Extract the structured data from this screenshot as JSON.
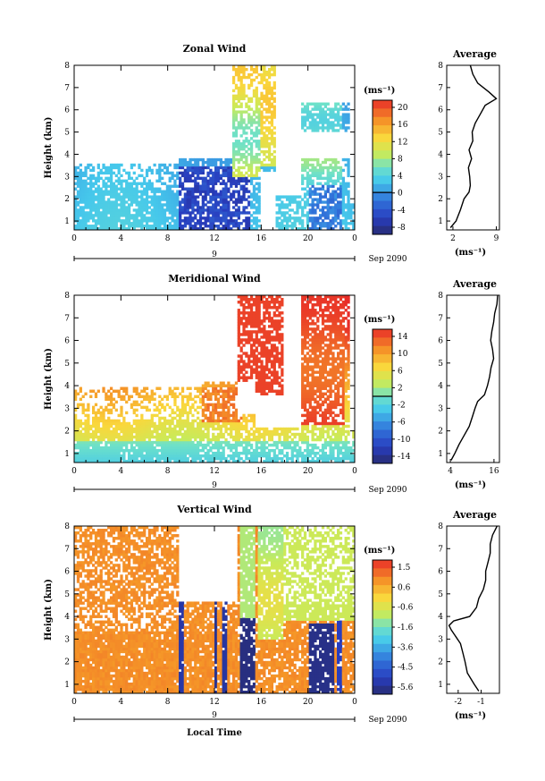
{
  "page": {
    "date_label": "Sep 2090",
    "day_label": "9",
    "xlabel": "Local Time"
  },
  "chart_data": [
    {
      "type": "heatmap",
      "title": "Zonal Wind",
      "ylabel": "Height (km)",
      "unit_label": "(ms⁻¹)",
      "xlim": [
        0,
        24
      ],
      "ylim": [
        0.6,
        8
      ],
      "xticks": [
        "0",
        "4",
        "8",
        "12",
        "16",
        "20",
        "0"
      ],
      "yticks": [
        "1",
        "2",
        "3",
        "4",
        "5",
        "6",
        "7",
        "8"
      ],
      "colorbar_ticks": [
        "20",
        "16",
        "12",
        "8",
        "4",
        "0",
        "-4",
        "-8"
      ],
      "clim": [
        -10,
        22
      ],
      "zero_line": 0,
      "color_low": "#2b2f7a",
      "color_mid": "#5de2f0",
      "color_high": "#e8312b",
      "average": {
        "title": "Average",
        "xticks": [
          "2",
          "9"
        ],
        "xlim": [
          1,
          9.5
        ],
        "xlabel": "(ms⁻¹)",
        "height": [
          0.7,
          1.0,
          1.5,
          2.0,
          2.3,
          2.6,
          3.0,
          3.4,
          3.8,
          4.2,
          4.6,
          5.0,
          5.4,
          5.8,
          6.2,
          6.5,
          6.8,
          7.2,
          7.6,
          8.0
        ],
        "value": [
          1.6,
          2.5,
          3.2,
          3.8,
          4.6,
          4.8,
          4.7,
          4.5,
          5.0,
          4.6,
          5.2,
          5.1,
          5.6,
          6.4,
          7.2,
          9.0,
          7.8,
          6.0,
          5.2,
          4.8
        ]
      }
    },
    {
      "type": "heatmap",
      "title": "Meridional Wind",
      "ylabel": "Height (km)",
      "unit_label": "(ms⁻¹)",
      "xlim": [
        0,
        24
      ],
      "ylim": [
        0.6,
        8
      ],
      "xticks": [
        "0",
        "4",
        "8",
        "12",
        "16",
        "20",
        "0"
      ],
      "yticks": [
        "1",
        "2",
        "3",
        "4",
        "5",
        "6",
        "7",
        "8"
      ],
      "colorbar_ticks": [
        "14",
        "10",
        "6",
        "2",
        "-2",
        "-6",
        "-10",
        "-14"
      ],
      "clim": [
        -16,
        16
      ],
      "zero_line": 0,
      "color_low": "#2b2f7a",
      "color_mid": "#5de2f0",
      "color_high": "#e8312b",
      "average": {
        "title": "Average",
        "xticks": [
          "4",
          "16"
        ],
        "xlim": [
          3,
          17.5
        ],
        "xlabel": "(ms⁻¹)",
        "height": [
          0.7,
          1.0,
          1.4,
          1.8,
          2.2,
          2.6,
          3.0,
          3.3,
          3.6,
          4.0,
          4.4,
          4.8,
          5.2,
          5.6,
          6.0,
          6.4,
          6.8,
          7.2,
          7.6,
          8.0
        ],
        "value": [
          4.2,
          5.2,
          6.4,
          7.8,
          9.2,
          10.0,
          10.8,
          11.5,
          13.4,
          14.2,
          14.8,
          15.2,
          15.9,
          15.6,
          15.1,
          15.4,
          15.9,
          16.2,
          16.8,
          17.0
        ]
      }
    },
    {
      "type": "heatmap",
      "title": "Vertical Wind",
      "ylabel": "Height (km)",
      "unit_label": "(ms⁻¹)",
      "xlim": [
        0,
        24
      ],
      "ylim": [
        0.6,
        8
      ],
      "xticks": [
        "0",
        "4",
        "8",
        "12",
        "16",
        "20",
        "0"
      ],
      "yticks": [
        "1",
        "2",
        "3",
        "4",
        "5",
        "6",
        "7",
        "8"
      ],
      "colorbar_ticks": [
        "1.5",
        "0.6",
        "-0.6",
        "-1.6",
        "-3.6",
        "-4.5",
        "-5.6"
      ],
      "clim": [
        -6.2,
        2.0
      ],
      "zero_line": null,
      "color_low": "#2b2f7a",
      "color_mid": "#5de2f0",
      "color_high": "#e8312b",
      "average": {
        "title": "Average",
        "xticks": [
          "-2",
          "-1"
        ],
        "xlim": [
          -2.5,
          -0.2
        ],
        "xlabel": "(ms⁻¹)",
        "height": [
          0.7,
          1.0,
          1.5,
          2.0,
          2.4,
          2.8,
          3.1,
          3.4,
          3.6,
          3.8,
          4.0,
          4.4,
          4.8,
          5.2,
          5.6,
          6.0,
          6.4,
          6.8,
          7.2,
          7.6,
          8.0
        ],
        "value": [
          -1.1,
          -1.3,
          -1.6,
          -1.7,
          -1.8,
          -1.9,
          -2.1,
          -2.3,
          -2.4,
          -2.2,
          -1.5,
          -1.2,
          -1.1,
          -0.9,
          -0.8,
          -0.8,
          -0.7,
          -0.6,
          -0.6,
          -0.5,
          -0.3
        ]
      }
    }
  ]
}
